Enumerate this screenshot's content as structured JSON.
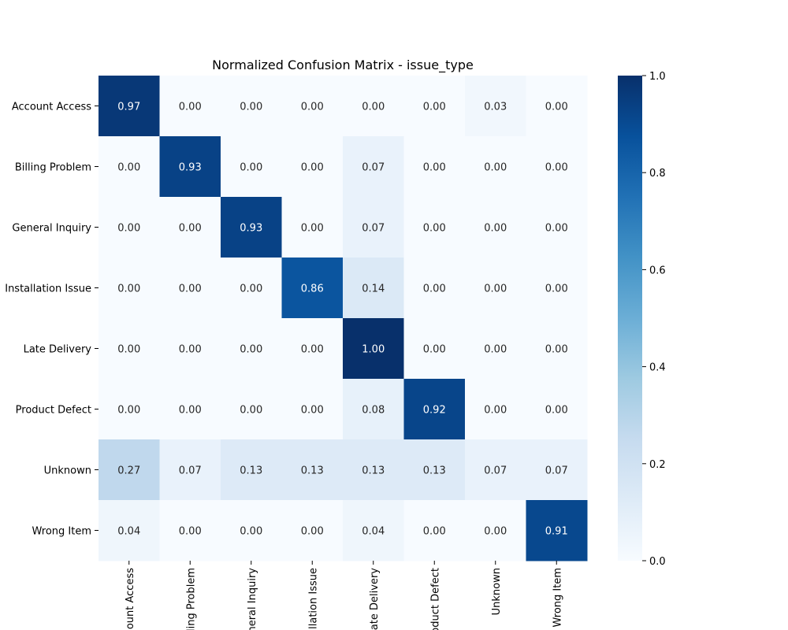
{
  "chart_data": {
    "type": "heatmap",
    "title": "Normalized Confusion Matrix - issue_type",
    "xlabel": "",
    "ylabel": "",
    "row_labels": [
      "Account Access",
      "Billing Problem",
      "General Inquiry",
      "Installation Issue",
      "Late Delivery",
      "Product Defect",
      "Unknown",
      "Wrong Item"
    ],
    "col_labels": [
      "Account Access",
      "Billing Problem",
      "General Inquiry",
      "Installation Issue",
      "Late Delivery",
      "Product Defect",
      "Unknown",
      "Wrong Item"
    ],
    "values": [
      [
        0.97,
        0.0,
        0.0,
        0.0,
        0.0,
        0.0,
        0.03,
        0.0
      ],
      [
        0.0,
        0.93,
        0.0,
        0.0,
        0.07,
        0.0,
        0.0,
        0.0
      ],
      [
        0.0,
        0.0,
        0.93,
        0.0,
        0.07,
        0.0,
        0.0,
        0.0
      ],
      [
        0.0,
        0.0,
        0.0,
        0.86,
        0.14,
        0.0,
        0.0,
        0.0
      ],
      [
        0.0,
        0.0,
        0.0,
        0.0,
        1.0,
        0.0,
        0.0,
        0.0
      ],
      [
        0.0,
        0.0,
        0.0,
        0.0,
        0.08,
        0.92,
        0.0,
        0.0
      ],
      [
        0.27,
        0.07,
        0.13,
        0.13,
        0.13,
        0.13,
        0.07,
        0.07
      ],
      [
        0.04,
        0.0,
        0.0,
        0.0,
        0.04,
        0.0,
        0.0,
        0.91
      ]
    ],
    "value_format": "0.00",
    "colorscale": "Blues",
    "colorscale_stops": [
      "#f7fbff",
      "#deebf7",
      "#c6dbef",
      "#9ecae1",
      "#6baed6",
      "#4292c6",
      "#2171b5",
      "#08519c",
      "#08306b"
    ],
    "colorbar_range": [
      0,
      1
    ],
    "colorbar_ticks": [
      "0.0",
      "0.2",
      "0.4",
      "0.6",
      "0.8",
      "1.0"
    ],
    "colorbar_position": "right",
    "grid": false
  }
}
